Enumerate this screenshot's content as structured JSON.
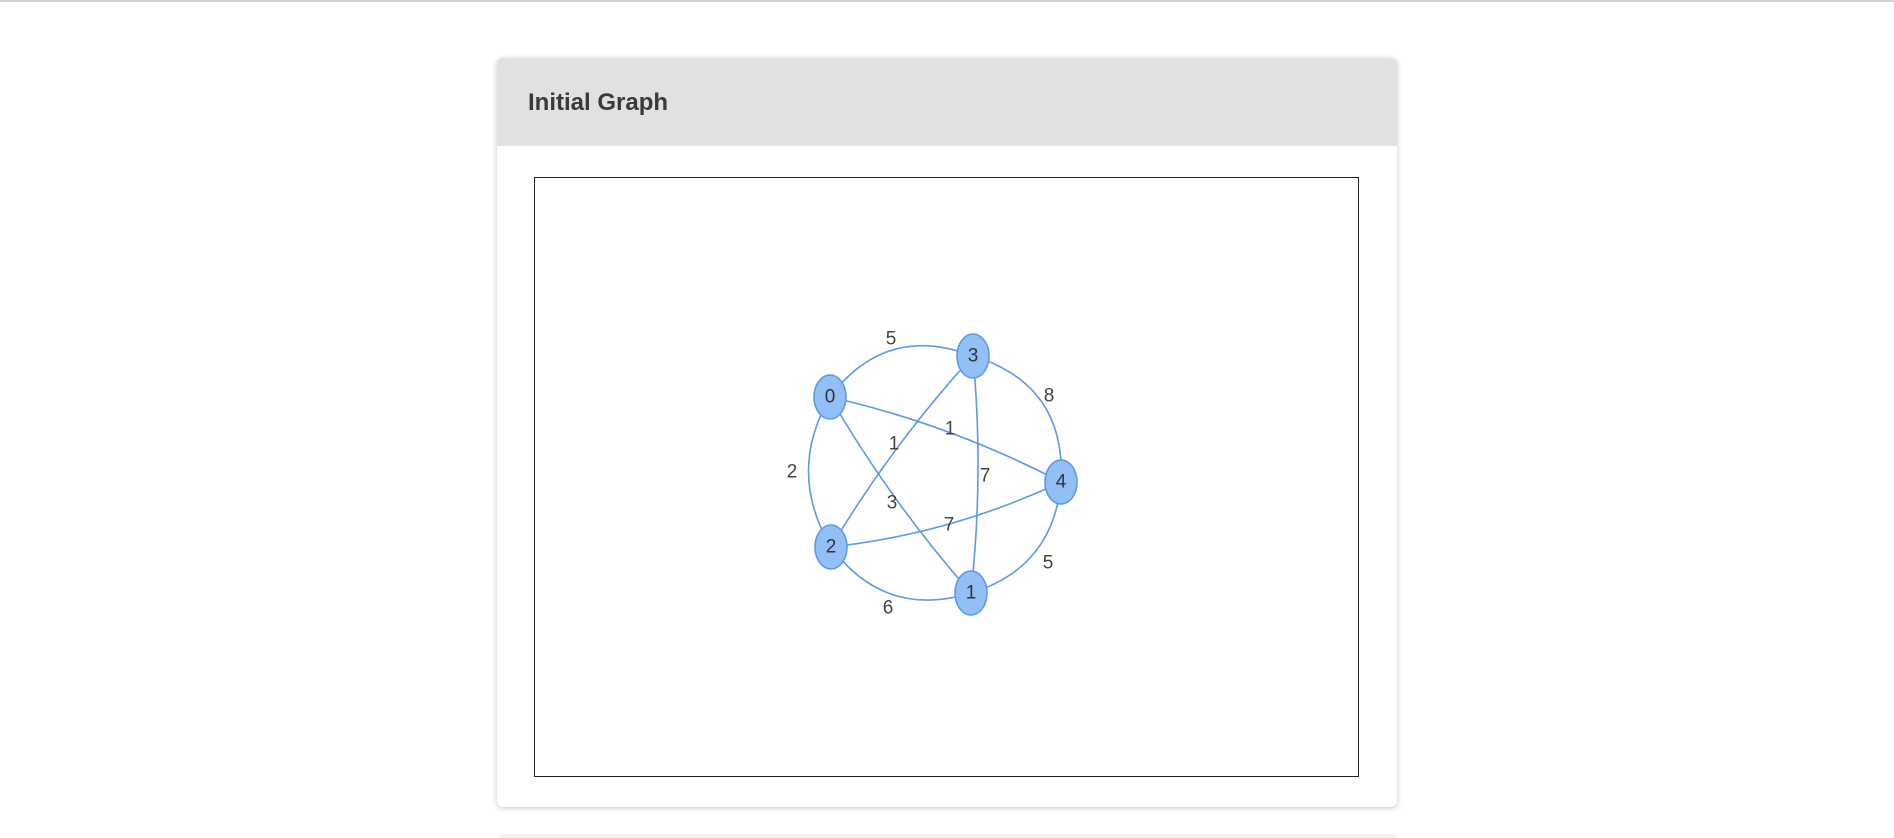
{
  "card": {
    "title": "Initial Graph"
  },
  "colors": {
    "node_fill": "#92bff5",
    "node_stroke": "#5a9ae6",
    "edge": "#5a9ae6",
    "header_bg": "#e1e1e1"
  },
  "graph": {
    "nodes": [
      {
        "id": "0",
        "label": "0"
      },
      {
        "id": "1",
        "label": "1"
      },
      {
        "id": "2",
        "label": "2"
      },
      {
        "id": "3",
        "label": "3"
      },
      {
        "id": "4",
        "label": "4"
      }
    ],
    "edges": [
      {
        "source": "0",
        "target": "3",
        "weight": "5"
      },
      {
        "source": "3",
        "target": "4",
        "weight": "8"
      },
      {
        "source": "0",
        "target": "4",
        "weight": "1"
      },
      {
        "source": "2",
        "target": "3",
        "weight": "1"
      },
      {
        "source": "3",
        "target": "1",
        "weight": "7"
      },
      {
        "source": "0",
        "target": "2",
        "weight": "2"
      },
      {
        "source": "0",
        "target": "1",
        "weight": "3"
      },
      {
        "source": "2",
        "target": "4",
        "weight": "7"
      },
      {
        "source": "4",
        "target": "1",
        "weight": "5"
      },
      {
        "source": "2",
        "target": "1",
        "weight": "6"
      }
    ]
  }
}
